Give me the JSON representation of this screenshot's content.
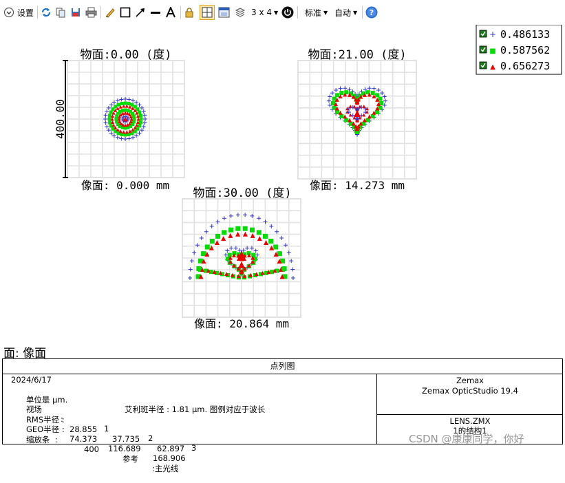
{
  "toolbar": {
    "settings_label": "设置",
    "layout_label": "3 x 4",
    "standard_label": "标准",
    "auto_label": "自动"
  },
  "legend": {
    "items": [
      {
        "symbol": "+",
        "value": "0.486133",
        "color": "#3333cc"
      },
      {
        "symbol": "■",
        "value": "0.587562",
        "color": "#00dd00"
      },
      {
        "symbol": "▲",
        "value": "0.656273",
        "color": "#ee0000"
      }
    ]
  },
  "chart_data": [
    {
      "type": "scatter",
      "title": "物面:0.00 (度)",
      "xlabel": "像面: 0.000 mm",
      "scale_label": "400.00",
      "series": [
        {
          "name": "0.486133"
        },
        {
          "name": "0.587562"
        },
        {
          "name": "0.656273"
        }
      ]
    },
    {
      "type": "scatter",
      "title": "物面:21.00 (度)",
      "xlabel": "像面: 14.273 mm",
      "series": [
        {
          "name": "0.486133"
        },
        {
          "name": "0.587562"
        },
        {
          "name": "0.656273"
        }
      ]
    },
    {
      "type": "scatter",
      "title": "物面:30.00 (度)",
      "xlabel": "像面: 20.864 mm",
      "series": [
        {
          "name": "0.486133"
        },
        {
          "name": "0.587562"
        },
        {
          "name": "0.656273"
        }
      ]
    }
  ],
  "surface_label": "面: 像面",
  "info": {
    "title": "点列图",
    "date": "2024/6/17",
    "unit": "单位是 μm.",
    "airy": "艾利斑半径 : 1.81 μm. 图例对应于波长",
    "field_label": "视场",
    "field_sep": ":",
    "fields": [
      "1",
      "2",
      "3"
    ],
    "rms_label": "RMS半径 :",
    "rms": [
      "28.855",
      "37.735",
      "62.897"
    ],
    "geo_label": "GEO半径 :",
    "geo": [
      "74.373",
      "116.689",
      "168.906"
    ],
    "scale_label": "缩放条  :",
    "scale": "400",
    "ref_label": "参考",
    "ref_value": ":主光线",
    "company": "Zemax",
    "product": "Zemax OpticStudio 19.4",
    "file": "LENS.ZMX",
    "config": "1的结构1"
  },
  "watermark": "CSDN @康康同学，你好"
}
